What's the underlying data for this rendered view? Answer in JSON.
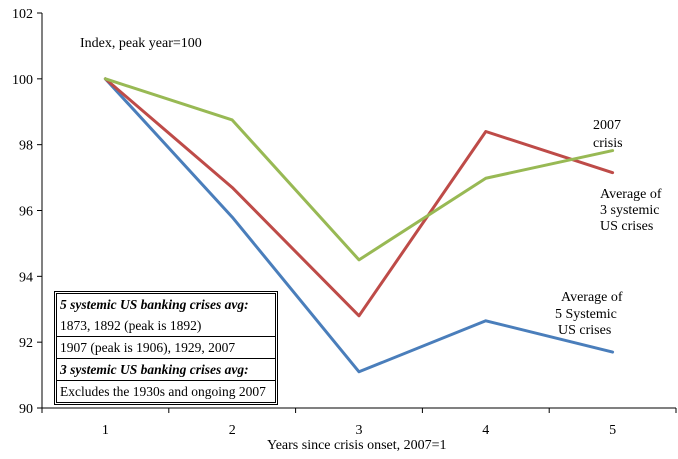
{
  "chart_data": {
    "type": "line",
    "title": "",
    "xlabel": "Years since crisis onset, 2007=1",
    "ylabel": "",
    "x": [
      1,
      2,
      3,
      4,
      5
    ],
    "xlim": [
      0.5,
      5.5
    ],
    "ylim": [
      90,
      102
    ],
    "yticks": [
      90,
      92,
      94,
      96,
      98,
      100,
      102
    ],
    "xticks": [
      1,
      2,
      3,
      4,
      5
    ],
    "grid": false,
    "annotation_index": "Index, peak year=100",
    "series": [
      {
        "name": "Average of 5 Systemic US crises",
        "color": "#4a7ebb",
        "values": [
          100,
          95.8,
          91.1,
          92.65,
          91.7
        ]
      },
      {
        "name": "Average of 3 systemic US crises",
        "color": "#be4b48",
        "values": [
          100,
          96.7,
          92.8,
          98.4,
          97.15
        ]
      },
      {
        "name": "2007 crisis",
        "color": "#98b954",
        "values": [
          100,
          98.75,
          94.5,
          96.98,
          97.82
        ]
      }
    ],
    "labels": {
      "crisis2007": [
        "2007",
        "crisis"
      ],
      "avg3": [
        "Average of",
        "3 systemic",
        "US crises"
      ],
      "avg5": [
        "Average of",
        "5 Systemic",
        "US crises"
      ]
    },
    "note": {
      "h1": "5 systemic US banking crises avg:",
      "l1": "1873, 1892 (peak is 1892)",
      "l2": "1907 (peak is 1906), 1929, 2007",
      "h2": "3 systemic US banking crises avg:",
      "l3": "Excludes the 1930s and ongoing 2007"
    }
  }
}
